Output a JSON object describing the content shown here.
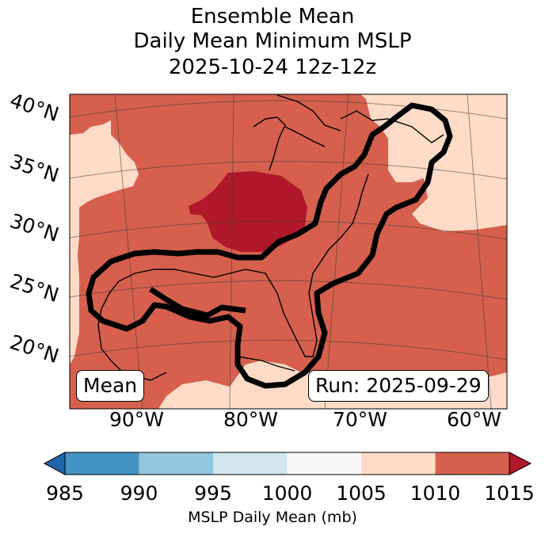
{
  "title": {
    "line1": "Ensemble Mean",
    "line2": "Daily Mean Minimum MSLP",
    "line3": "2025-10-24 12z-12z"
  },
  "map": {
    "lat_labels": [
      "40°N",
      "35°N",
      "30°N",
      "25°N",
      "20°N"
    ],
    "lon_labels": [
      "90°W",
      "80°W",
      "70°W",
      "60°W"
    ],
    "badge_left": "Mean",
    "badge_right": "Run: 2025-09-29",
    "fill_colors": {
      "1005-1010": "#fddbc7",
      "1010-1015": "#d6604d",
      "above-1015": "#b2182b"
    },
    "contour_color": "#000000"
  },
  "colorbar": {
    "ticks": [
      "985",
      "990",
      "995",
      "1000",
      "1005",
      "1010",
      "1015"
    ],
    "label": "MSLP Daily Mean (mb)",
    "bins": [
      {
        "range": "below-985",
        "color": "#2166ac"
      },
      {
        "range": "985-990",
        "color": "#4393c3"
      },
      {
        "range": "990-995",
        "color": "#92c5de"
      },
      {
        "range": "995-1000",
        "color": "#d1e5f0"
      },
      {
        "range": "1000-1005",
        "color": "#f7f7f7"
      },
      {
        "range": "1005-1010",
        "color": "#fddbc7"
      },
      {
        "range": "1010-1015",
        "color": "#d6604d"
      },
      {
        "range": "above-1015",
        "color": "#b2182b"
      }
    ]
  }
}
